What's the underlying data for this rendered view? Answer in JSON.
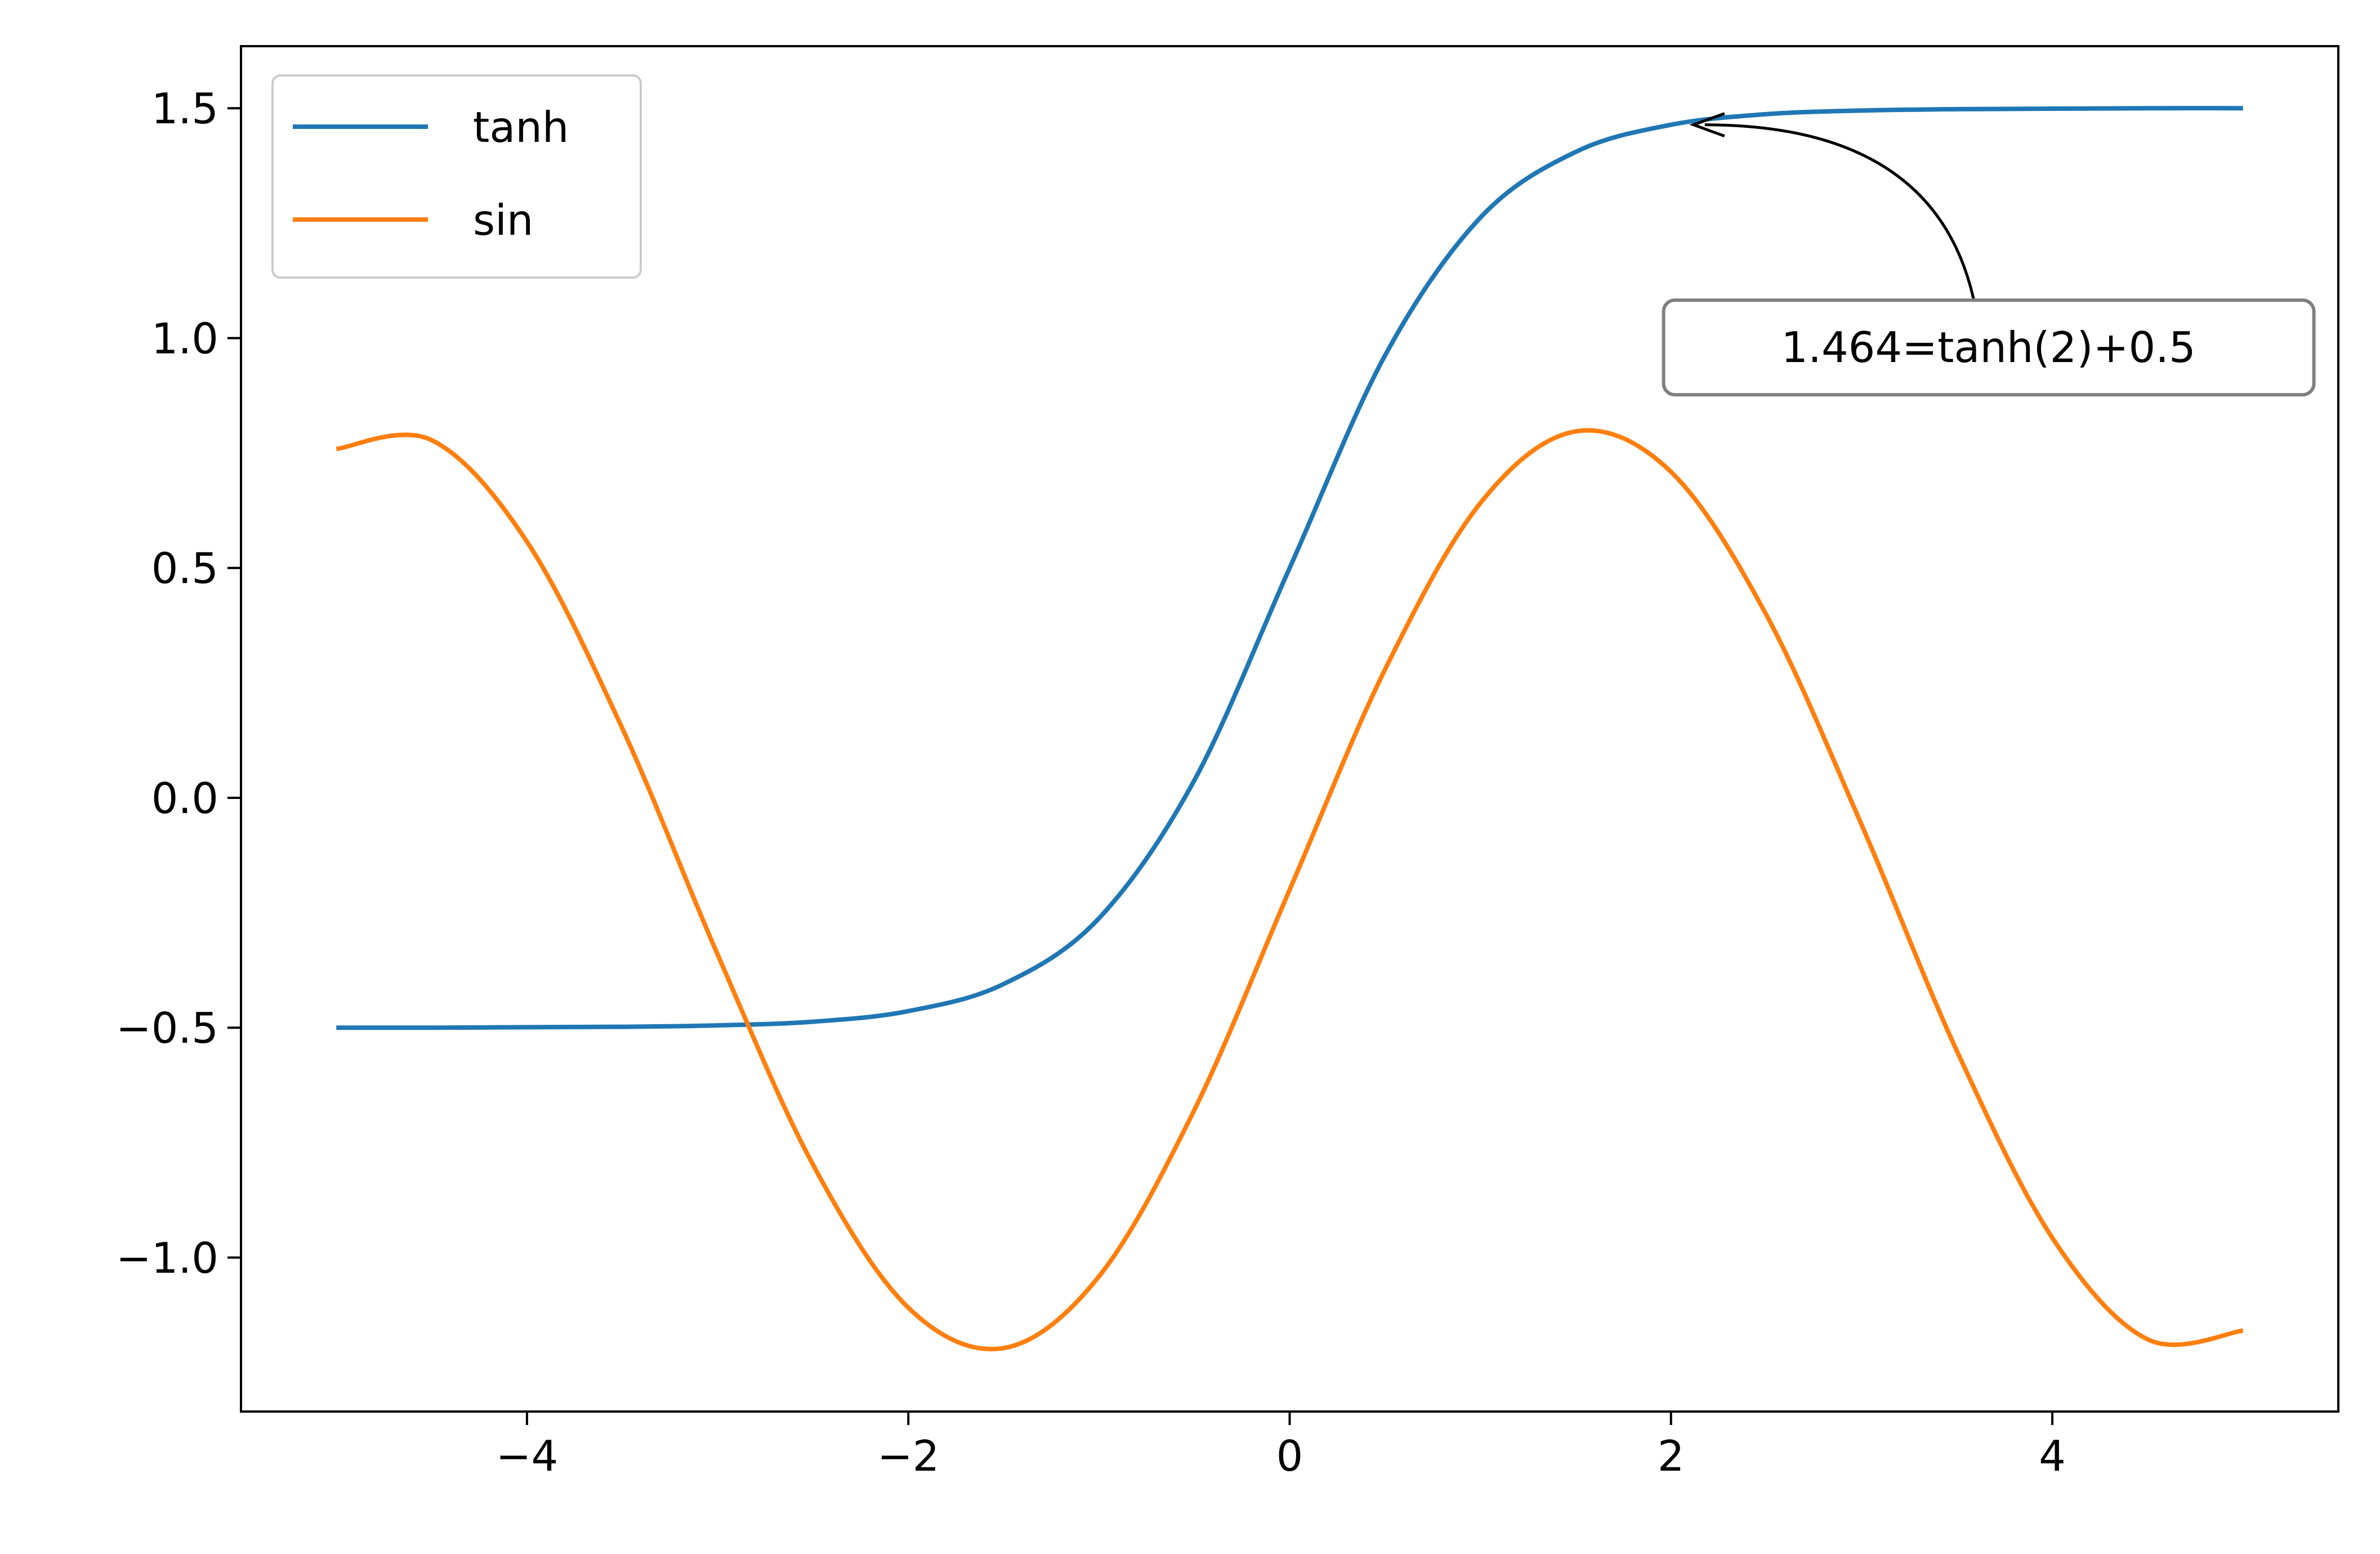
{
  "chart_data": {
    "type": "line",
    "title": "",
    "xlabel": "",
    "ylabel": "",
    "xlim": [
      -5.5,
      5.5
    ],
    "ylim": [
      -1.335,
      1.635
    ],
    "xticks": [
      -4,
      -2,
      0,
      2,
      4
    ],
    "xtick_labels": [
      "−4",
      "−2",
      "0",
      "2",
      "4"
    ],
    "yticks": [
      -1.0,
      -0.5,
      0.0,
      0.5,
      1.0,
      1.5
    ],
    "ytick_labels": [
      "−1.0",
      "−0.5",
      "0.0",
      "0.5",
      "1.0",
      "1.5"
    ],
    "grid": false,
    "legend_position": "upper left",
    "x": [
      -5.0,
      -4.5,
      -4.0,
      -3.5,
      -3.0,
      -2.5,
      -2.0,
      -1.5,
      -1.0,
      -0.5,
      0.0,
      0.5,
      1.0,
      1.5,
      2.0,
      2.5,
      3.0,
      3.5,
      4.0,
      4.5,
      5.0
    ],
    "series": [
      {
        "name": "tanh",
        "color": "#1f77b4",
        "values": [
          -0.5,
          -0.5,
          -0.499,
          -0.498,
          -0.495,
          -0.487,
          -0.464,
          -0.405,
          -0.262,
          0.038,
          0.5,
          0.962,
          1.262,
          1.405,
          1.464,
          1.487,
          1.495,
          1.498,
          1.499,
          1.5,
          1.5
        ]
      },
      {
        "name": "sin",
        "color": "#ff7f0e",
        "values": [
          0.759,
          0.778,
          0.557,
          0.151,
          -0.341,
          -0.798,
          -1.109,
          -1.197,
          -1.041,
          -0.679,
          -0.2,
          0.279,
          0.641,
          0.797,
          0.709,
          0.398,
          -0.059,
          -0.551,
          -0.957,
          -1.178,
          -1.159
        ]
      }
    ],
    "annotations": [
      {
        "text": "1.464=tanh(2)+0.5",
        "xy": [
          2.0,
          1.464
        ],
        "text_anchor": [
          3.6,
          0.96
        ]
      }
    ]
  }
}
